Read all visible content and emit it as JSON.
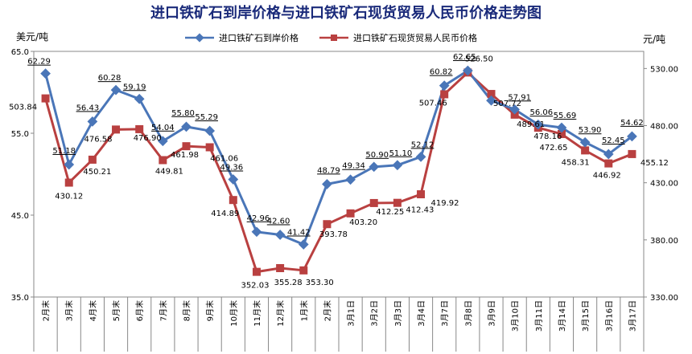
{
  "title": "进口铁矿石到岸价格与进口铁矿石现货贸易人民币价格走势图",
  "left_unit": "美元/吨",
  "right_unit": "元/吨",
  "colors": {
    "usd": "#4a76b8",
    "rmb": "#b94040"
  },
  "chart_data": {
    "type": "line",
    "categories": [
      "2月末",
      "3月末",
      "4月末",
      "5月末",
      "6月末",
      "7月末",
      "8月末",
      "9月末",
      "10月末",
      "11月末",
      "12月末",
      "1月末",
      "2月末",
      "3月1日",
      "3月2日",
      "3月3日",
      "3月4日",
      "3月7日",
      "3月8日",
      "3月9日",
      "3月10日",
      "3月11日",
      "3月14日",
      "3月15日",
      "3月16日",
      "3月17日"
    ],
    "series": [
      {
        "name": "进口铁矿石到岸价格",
        "axis": "left",
        "marker": "diamond",
        "values": [
          62.29,
          51.18,
          56.43,
          60.28,
          59.19,
          54.04,
          55.8,
          55.29,
          49.36,
          42.96,
          42.6,
          41.42,
          48.79,
          49.34,
          50.9,
          51.1,
          52.12,
          60.82,
          62.65,
          59.0,
          57.91,
          56.06,
          55.69,
          53.9,
          52.45,
          54.62
        ],
        "labels": [
          "62.29",
          "51.18",
          "56.43",
          "60.28",
          "59.19",
          "54.04",
          "55.80",
          "55.29",
          "49.36",
          "42.96",
          "42.60",
          "41.42",
          "48.79",
          "49.34",
          "50.90",
          "51.10",
          "52.12",
          "60.82",
          "62.65",
          "",
          "57.91",
          "56.06",
          "55.69",
          "53.90",
          "52.45",
          "54.62"
        ]
      },
      {
        "name": "进口铁矿石现货贸易人民币价格",
        "axis": "right",
        "marker": "square",
        "values": [
          503.84,
          430.12,
          450.21,
          476.58,
          476.9,
          449.81,
          461.98,
          461.06,
          414.89,
          352.03,
          355.28,
          353.3,
          393.78,
          403.2,
          412.25,
          412.43,
          419.92,
          507.46,
          526.5,
          507.72,
          489.61,
          478.16,
          472.65,
          458.31,
          446.92,
          455.12
        ],
        "labels": [
          "503.84",
          "430.12",
          "450.21",
          "476.58",
          "476.90",
          "449.81",
          "461.98",
          "461.06",
          "414.89",
          "352.03",
          "355.28",
          "353.30",
          "393.78",
          "403.20",
          "412.25",
          "412.43",
          "419.92",
          "507.46",
          "526.50",
          "507.72",
          "489.61",
          "478.16",
          "472.65",
          "458.31",
          "446.92",
          "455.12"
        ]
      }
    ],
    "y_left": {
      "min": 35,
      "max": 65,
      "ticks": [
        "35.0",
        "45.0",
        "55.0",
        "65.0"
      ]
    },
    "y_right": {
      "min": 330,
      "max": 545,
      "ticks": [
        "330.00",
        "380.00",
        "430.00",
        "480.00",
        "530.00"
      ]
    },
    "legend_position": "top"
  }
}
